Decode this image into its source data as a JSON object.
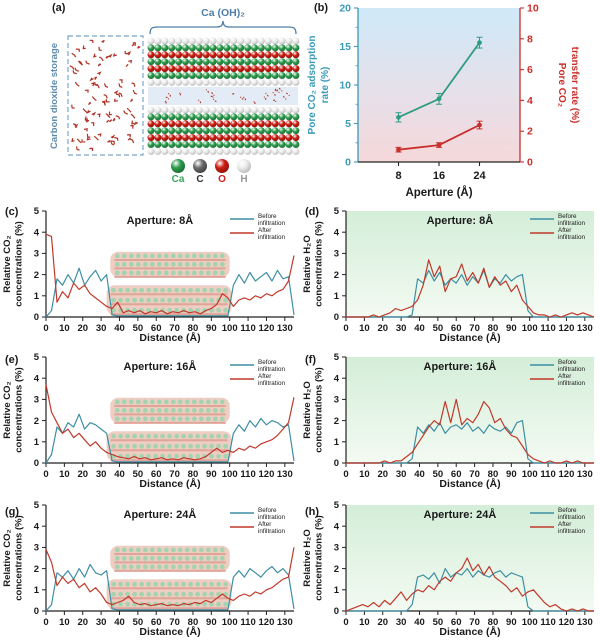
{
  "colors": {
    "before": "#3e8fa3",
    "after": "#c0392b",
    "b_left_line": "#2f9c82",
    "b_left_text": "#3a9ab8",
    "b_right": "#c9302c",
    "axis": "#222222",
    "panel_a_blue": "#4d7fa8",
    "h2o_bg_top": "#d4eed8",
    "h2o_bg_bottom": "#f3faf2",
    "b_bg_top": "#cfe9f8",
    "b_bg_bottom": "#f5d8da"
  },
  "panel_a": {
    "label": "(a)",
    "top_annotation": "Ca (OH)₂",
    "side_label": "Carbon dioxide storage",
    "atom_legend": [
      {
        "label": "Ca",
        "color": "#2f9e4f",
        "label_color": "#3aa65a"
      },
      {
        "label": "C",
        "color": "#6f6f6f",
        "label_color": "#333333"
      },
      {
        "label": "O",
        "color": "#cc1f14",
        "label_color": "#cc2222"
      },
      {
        "label": "H",
        "color": "#ededed",
        "label_color": "#999999"
      }
    ]
  },
  "chart_data": [
    {
      "id": "b",
      "label": "(b)",
      "type": "line",
      "x": [
        8,
        16,
        24
      ],
      "xticks": [
        8,
        16,
        24
      ],
      "xlim": [
        0,
        32
      ],
      "xlabel": "Aperture (Å)",
      "ylabel_left": [
        "Pore CO₂ adsorption",
        "rate (%)"
      ],
      "ylabel_right": [
        "Pore CO₂",
        "transfer rate (%)"
      ],
      "ylim_left": [
        0,
        20
      ],
      "yticks_left": [
        0,
        5,
        10,
        15,
        20
      ],
      "ylim_right": [
        0,
        10
      ],
      "yticks_right": [
        0,
        2,
        4,
        6,
        8,
        10
      ],
      "series": [
        {
          "name": "Pore CO₂ adsorption rate (%)",
          "axis": "left",
          "values": [
            5.8,
            8.2,
            15.5
          ],
          "errors": [
            0.6,
            0.7,
            0.7
          ]
        },
        {
          "name": "Pore CO₂ transfer rate (%)",
          "axis": "right",
          "values": [
            0.8,
            1.1,
            2.4
          ],
          "errors": [
            0.15,
            0.15,
            0.25
          ]
        }
      ]
    },
    {
      "id": "c",
      "label": "(c)",
      "type": "line",
      "kind": "co2",
      "title": "Aperture: 8Å",
      "xlabel": "Distance (Å)",
      "ylabel": [
        "Relative CO₂",
        "concentrations (%)"
      ],
      "xlim": [
        0,
        135
      ],
      "x_start": 0,
      "x_step": 3,
      "xticks": [
        0,
        10,
        20,
        30,
        40,
        50,
        60,
        70,
        80,
        90,
        100,
        110,
        120,
        130
      ],
      "ylim": [
        0,
        5
      ],
      "yticks": [
        0,
        1,
        2,
        3,
        4,
        5
      ],
      "legend": [
        {
          "name": [
            "Before",
            "infiltration"
          ],
          "role": "before"
        },
        {
          "name": [
            "After",
            "infiltration"
          ],
          "role": "after"
        }
      ],
      "series": [
        {
          "role": "before",
          "values": [
            0,
            0.3,
            1.8,
            1.5,
            2.0,
            1.6,
            2.3,
            1.5,
            1.9,
            2.2,
            1.7,
            2.0,
            0.1,
            0.05,
            0.05,
            0.05,
            0.05,
            0.05,
            0.05,
            0.05,
            0.05,
            0.05,
            0.05,
            0.05,
            0.05,
            0.05,
            0.05,
            0.05,
            0.05,
            0.05,
            0.05,
            0.05,
            0.05,
            0.05,
            1.5,
            2.0,
            1.6,
            2.1,
            1.7,
            1.9,
            2.1,
            1.7,
            2.2,
            1.8,
            1.9,
            0.1
          ]
        },
        {
          "role": "after",
          "values": [
            3.9,
            3.8,
            0.7,
            1.2,
            0.9,
            1.6,
            1.3,
            1.5,
            1.1,
            0.9,
            0.7,
            0.5,
            0.4,
            0.7,
            0.2,
            0.3,
            0.2,
            0.3,
            0.15,
            0.25,
            0.2,
            0.3,
            0.15,
            0.25,
            0.2,
            0.3,
            0.2,
            0.25,
            0.15,
            0.3,
            0.4,
            0.6,
            1.1,
            0.9,
            0.5,
            0.8,
            0.9,
            0.8,
            1.0,
            0.9,
            1.1,
            1.0,
            1.2,
            1.3,
            1.7,
            2.9
          ]
        }
      ]
    },
    {
      "id": "d",
      "label": "(d)",
      "type": "line",
      "kind": "h2o",
      "title": "Aperture: 8Å",
      "xlabel": "Distance (Å)",
      "ylabel": [
        "Relative H₂O",
        "concentrations (%)"
      ],
      "xlim": [
        0,
        135
      ],
      "x_start": 0,
      "x_step": 3,
      "xticks": [
        0,
        10,
        20,
        30,
        40,
        50,
        60,
        70,
        80,
        90,
        100,
        110,
        120,
        130
      ],
      "ylim": [
        0,
        5
      ],
      "yticks": [
        0,
        1,
        2,
        3,
        4,
        5
      ],
      "legend": [
        {
          "name": [
            "Before",
            "infiltration"
          ],
          "role": "before"
        },
        {
          "name": [
            "After",
            "infiltration"
          ],
          "role": "after"
        }
      ],
      "series": [
        {
          "role": "before",
          "values": [
            0,
            0,
            0,
            0,
            0,
            0,
            0,
            0,
            0,
            0,
            0,
            0,
            0.1,
            1.8,
            1.6,
            2.2,
            1.7,
            2.1,
            1.5,
            1.8,
            1.6,
            2.0,
            1.5,
            1.9,
            1.6,
            2.2,
            1.4,
            1.8,
            1.6,
            2.0,
            1.7,
            1.9,
            2.0,
            0.3,
            0,
            0,
            0,
            0,
            0,
            0,
            0,
            0,
            0,
            0,
            0,
            0
          ]
        },
        {
          "role": "after",
          "values": [
            0,
            0,
            0,
            0,
            0,
            0.1,
            0,
            0.1,
            0.2,
            0.4,
            0.3,
            0.4,
            0.5,
            0.8,
            1.5,
            2.7,
            1.9,
            2.4,
            1.2,
            1.8,
            1.9,
            2.5,
            1.7,
            2.1,
            1.6,
            2.3,
            1.4,
            1.9,
            1.5,
            1.7,
            1.2,
            1.5,
            0.8,
            0.5,
            0.2,
            0.1,
            0.1,
            0,
            0.1,
            0,
            0.1,
            0.2,
            0.1,
            0.2,
            0.1,
            0
          ]
        }
      ]
    },
    {
      "id": "e",
      "label": "(e)",
      "type": "line",
      "kind": "co2",
      "title": "Aperture: 16Å",
      "xlabel": "Distance (Å)",
      "ylabel": [
        "Relative CO₂",
        "concentrations (%)"
      ],
      "xlim": [
        0,
        135
      ],
      "x_start": 0,
      "x_step": 3,
      "xticks": [
        0,
        10,
        20,
        30,
        40,
        50,
        60,
        70,
        80,
        90,
        100,
        110,
        120,
        130
      ],
      "ylim": [
        0,
        5
      ],
      "yticks": [
        0,
        1,
        2,
        3,
        4,
        5
      ],
      "legend": [
        {
          "name": [
            "Before",
            "infiltration"
          ],
          "role": "before"
        },
        {
          "name": [
            "After",
            "infiltration"
          ],
          "role": "after"
        }
      ],
      "series": [
        {
          "role": "before",
          "values": [
            0,
            0.4,
            1.7,
            1.4,
            1.9,
            1.7,
            2.3,
            1.6,
            1.9,
            1.8,
            1.6,
            1.4,
            0.1,
            0.05,
            0.05,
            0.05,
            0.05,
            0.05,
            0.05,
            0.05,
            0.05,
            0.05,
            0.05,
            0.05,
            0.05,
            0.05,
            0.05,
            0.05,
            0.05,
            0.05,
            0.05,
            0.05,
            0.05,
            0.05,
            1.4,
            1.8,
            1.5,
            2.0,
            1.7,
            2.1,
            1.8,
            2.0,
            1.9,
            1.7,
            1.8,
            0.1
          ]
        },
        {
          "role": "after",
          "values": [
            3.7,
            2.4,
            1.9,
            1.4,
            1.6,
            1.2,
            1.4,
            1.1,
            0.8,
            1.0,
            0.7,
            0.5,
            0.4,
            0.3,
            0.25,
            0.2,
            0.3,
            0.2,
            0.25,
            0.15,
            0.2,
            0.25,
            0.15,
            0.2,
            0.15,
            0.25,
            0.2,
            0.15,
            0.2,
            0.3,
            0.5,
            0.7,
            0.5,
            0.6,
            0.5,
            0.7,
            0.6,
            0.8,
            0.7,
            0.9,
            1.0,
            1.1,
            1.3,
            1.6,
            1.9,
            3.1
          ]
        }
      ]
    },
    {
      "id": "f",
      "label": "(f)",
      "type": "line",
      "kind": "h2o",
      "title": "Aperture: 16Å",
      "xlabel": "Distance (Å)",
      "ylabel": [
        "Relative H₂O",
        "concentrations (%)"
      ],
      "xlim": [
        0,
        135
      ],
      "x_start": 0,
      "x_step": 3,
      "xticks": [
        0,
        10,
        20,
        30,
        40,
        50,
        60,
        70,
        80,
        90,
        100,
        110,
        120,
        130
      ],
      "ylim": [
        0,
        5
      ],
      "yticks": [
        0,
        1,
        2,
        3,
        4,
        5
      ],
      "legend": [
        {
          "name": [
            "Before",
            "infiltration"
          ],
          "role": "before"
        },
        {
          "name": [
            "After",
            "infiltration"
          ],
          "role": "after"
        }
      ],
      "series": [
        {
          "role": "before",
          "values": [
            0,
            0,
            0,
            0,
            0,
            0,
            0,
            0,
            0,
            0,
            0,
            0,
            0.2,
            1.7,
            1.4,
            1.8,
            1.5,
            1.9,
            1.4,
            1.7,
            1.8,
            1.6,
            1.9,
            1.5,
            1.7,
            1.4,
            1.8,
            1.6,
            1.5,
            1.7,
            1.4,
            1.9,
            2.0,
            0.2,
            0,
            0,
            0,
            0,
            0,
            0,
            0,
            0,
            0,
            0,
            0,
            0
          ]
        },
        {
          "role": "after",
          "values": [
            0,
            0,
            0,
            0,
            0,
            0,
            0,
            0.1,
            0,
            0.1,
            0.1,
            0.3,
            0.5,
            0.9,
            1.3,
            1.7,
            2.0,
            1.8,
            2.9,
            1.9,
            3.0,
            1.8,
            2.1,
            1.9,
            2.3,
            2.9,
            2.6,
            1.9,
            2.1,
            1.6,
            1.3,
            1.2,
            0.8,
            0.4,
            0.2,
            0.1,
            0,
            0.1,
            0,
            0,
            0.1,
            0,
            0.1,
            0,
            0,
            0
          ]
        }
      ]
    },
    {
      "id": "g",
      "label": "(g)",
      "type": "line",
      "kind": "co2",
      "title": "Aperture: 24Å",
      "xlabel": "Distance (Å)",
      "ylabel": [
        "Relative CO₂",
        "concentrations (%)"
      ],
      "xlim": [
        0,
        135
      ],
      "x_start": 0,
      "x_step": 3,
      "xticks": [
        0,
        10,
        20,
        30,
        40,
        50,
        60,
        70,
        80,
        90,
        100,
        110,
        120,
        130
      ],
      "ylim": [
        0,
        5
      ],
      "yticks": [
        0,
        1,
        2,
        3,
        4,
        5
      ],
      "legend": [
        {
          "name": [
            "Before",
            "infiltration"
          ],
          "role": "before"
        },
        {
          "name": [
            "After",
            "infiltration"
          ],
          "role": "after"
        }
      ],
      "series": [
        {
          "role": "before",
          "values": [
            0,
            0.3,
            1.8,
            1.6,
            1.9,
            1.5,
            2.0,
            1.6,
            2.2,
            1.8,
            1.7,
            1.9,
            0.1,
            0.05,
            0.05,
            0.05,
            0.05,
            0.05,
            0.05,
            0.05,
            0.05,
            0.05,
            0.05,
            0.05,
            0.05,
            0.05,
            0.05,
            0.05,
            0.05,
            0.05,
            0.05,
            0.05,
            0.05,
            0.05,
            1.6,
            1.9,
            1.6,
            2.0,
            1.8,
            1.6,
            1.9,
            2.1,
            1.8,
            2.0,
            1.7,
            0.1
          ]
        },
        {
          "role": "after",
          "values": [
            2.9,
            2.3,
            1.2,
            1.6,
            1.3,
            1.5,
            1.1,
            1.3,
            0.9,
            1.1,
            0.8,
            0.4,
            0.3,
            0.4,
            0.5,
            0.7,
            0.4,
            0.3,
            0.35,
            0.25,
            0.3,
            0.35,
            0.25,
            0.3,
            0.25,
            0.35,
            0.3,
            0.4,
            0.35,
            0.5,
            0.4,
            0.6,
            0.8,
            0.6,
            0.5,
            0.7,
            0.8,
            0.7,
            0.9,
            0.8,
            1.0,
            1.1,
            1.3,
            1.5,
            1.6,
            3.0
          ]
        }
      ]
    },
    {
      "id": "h",
      "label": "(h)",
      "type": "line",
      "kind": "h2o",
      "title": "Aperture: 24Å",
      "xlabel": "Distance (Å)",
      "ylabel": [
        "Relative H₂O",
        "concentrations (%)"
      ],
      "xlim": [
        0,
        135
      ],
      "x_start": 0,
      "x_step": 3,
      "xticks": [
        0,
        10,
        20,
        30,
        40,
        50,
        60,
        70,
        80,
        90,
        100,
        110,
        120,
        130
      ],
      "ylim": [
        0,
        5
      ],
      "yticks": [
        0,
        1,
        2,
        3,
        4,
        5
      ],
      "legend": [
        {
          "name": [
            "Before",
            "infiltration"
          ],
          "role": "before"
        },
        {
          "name": [
            "After",
            "infiltration"
          ],
          "role": "after"
        }
      ],
      "series": [
        {
          "role": "before",
          "values": [
            0,
            0,
            0,
            0,
            0,
            0,
            0,
            0,
            0,
            0,
            0,
            0,
            0.3,
            1.6,
            1.7,
            1.5,
            1.8,
            1.3,
            2.0,
            1.6,
            1.8,
            1.7,
            2.0,
            1.6,
            1.9,
            1.7,
            1.6,
            1.8,
            1.9,
            1.6,
            1.8,
            1.7,
            1.6,
            0.2,
            0,
            0,
            0,
            0,
            0,
            0,
            0,
            0,
            0,
            0,
            0,
            0
          ]
        },
        {
          "role": "after",
          "values": [
            0,
            0.1,
            0.2,
            0.3,
            0.2,
            0.4,
            0.2,
            0.5,
            0.3,
            0.6,
            0.9,
            0.5,
            0.8,
            1.0,
            0.9,
            1.2,
            1.0,
            1.4,
            1.6,
            1.4,
            1.8,
            2.0,
            2.5,
            1.9,
            2.2,
            1.7,
            2.1,
            1.6,
            1.4,
            1.2,
            0.9,
            1.1,
            0.7,
            0.9,
            1.0,
            0.7,
            0.4,
            0.2,
            0.3,
            0.1,
            0,
            0.1,
            0,
            0.1,
            0,
            0
          ]
        }
      ]
    }
  ]
}
